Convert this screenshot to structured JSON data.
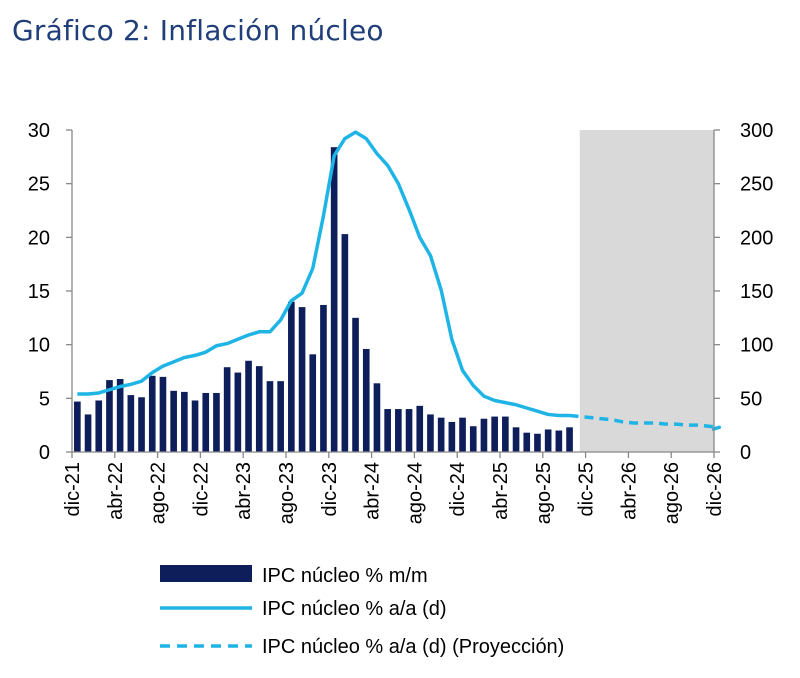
{
  "title": "Gráfico 2: Inflación núcleo",
  "chart_data": {
    "type": "bar",
    "title": "Gráfico 2: Inflación núcleo",
    "y_left": {
      "ylim": [
        0,
        30
      ],
      "ticks": [
        "0",
        "5",
        "10",
        "15",
        "20",
        "25",
        "30"
      ]
    },
    "y_right": {
      "ylim": [
        0,
        300
      ],
      "ticks": [
        "0",
        "50",
        "100",
        "150",
        "200",
        "250",
        "300"
      ]
    },
    "x_tick_labels": [
      "dic-21",
      "abr-22",
      "ago-22",
      "dic-22",
      "abr-23",
      "ago-23",
      "dic-23",
      "abr-24",
      "ago-24",
      "dic-24",
      "abr-25",
      "ago-25",
      "dic-25",
      "abr-26",
      "ago-26",
      "dic-26"
    ],
    "months": [
      "dic-21",
      "ene-22",
      "feb-22",
      "mar-22",
      "abr-22",
      "may-22",
      "jun-22",
      "jul-22",
      "ago-22",
      "sep-22",
      "oct-22",
      "nov-22",
      "dic-22",
      "ene-23",
      "feb-23",
      "mar-23",
      "abr-23",
      "may-23",
      "jun-23",
      "jul-23",
      "ago-23",
      "sep-23",
      "oct-23",
      "nov-23",
      "dic-23",
      "ene-24",
      "feb-24",
      "mar-24",
      "abr-24",
      "may-24",
      "jun-24",
      "jul-24",
      "ago-24",
      "sep-24",
      "oct-24",
      "nov-24",
      "dic-24",
      "ene-25",
      "feb-25",
      "mar-25",
      "abr-25",
      "may-25",
      "jun-25",
      "jul-25",
      "ago-25",
      "sep-25",
      "oct-25",
      "nov-25",
      "dic-25",
      "ene-26",
      "feb-26",
      "mar-26",
      "abr-26",
      "may-26",
      "jun-26",
      "jul-26",
      "ago-26",
      "sep-26",
      "oct-26",
      "nov-26",
      "dic-26"
    ],
    "shaded_region": {
      "from": "nov-25",
      "to": "dic-26",
      "color": "#d9d9d9"
    },
    "series": [
      {
        "name": "IPC núcleo % m/m",
        "type": "bar",
        "axis": "left",
        "color": "#0d1e5b",
        "values": [
          4.7,
          3.5,
          4.8,
          6.7,
          6.8,
          5.3,
          5.1,
          7.1,
          7.0,
          5.7,
          5.6,
          4.8,
          5.5,
          5.5,
          7.9,
          7.4,
          8.5,
          8.0,
          6.6,
          6.6,
          14.0,
          13.5,
          9.1,
          13.7,
          28.4,
          20.3,
          12.5,
          9.6,
          6.4,
          4.0,
          4.0,
          4.0,
          4.3,
          3.5,
          3.2,
          2.8,
          3.2,
          2.4,
          3.1,
          3.3,
          3.3,
          2.3,
          1.8,
          1.7,
          2.1,
          2.0,
          2.3
        ]
      },
      {
        "name": "IPC núcleo % a/a (d)",
        "type": "line",
        "axis": "right",
        "color": "#1fb4e6",
        "values": [
          54,
          54,
          55,
          58,
          61,
          63,
          66,
          74,
          80,
          84,
          88,
          90,
          93,
          99,
          101,
          105,
          109,
          112,
          112,
          123,
          141,
          148,
          171,
          220,
          276,
          292,
          298,
          292,
          278,
          267,
          250,
          226,
          200,
          183,
          151,
          105,
          76,
          62,
          52,
          48,
          46,
          44,
          41,
          38,
          35,
          34,
          34
        ]
      },
      {
        "name": "IPC núcleo % a/a (d) (Proyección)",
        "type": "line",
        "style": "dashed",
        "axis": "right",
        "color": "#1fb4e6",
        "values": [
          34,
          33,
          32,
          31,
          30,
          28,
          27,
          27,
          27,
          26,
          26,
          25,
          25,
          24,
          23,
          21
        ]
      }
    ],
    "legend": {
      "placement": "bottom",
      "entries": [
        "IPC núcleo % m/m",
        "IPC núcleo % a/a (d)",
        "IPC núcleo % a/a (d) (Proyección)"
      ]
    },
    "grid": false
  }
}
